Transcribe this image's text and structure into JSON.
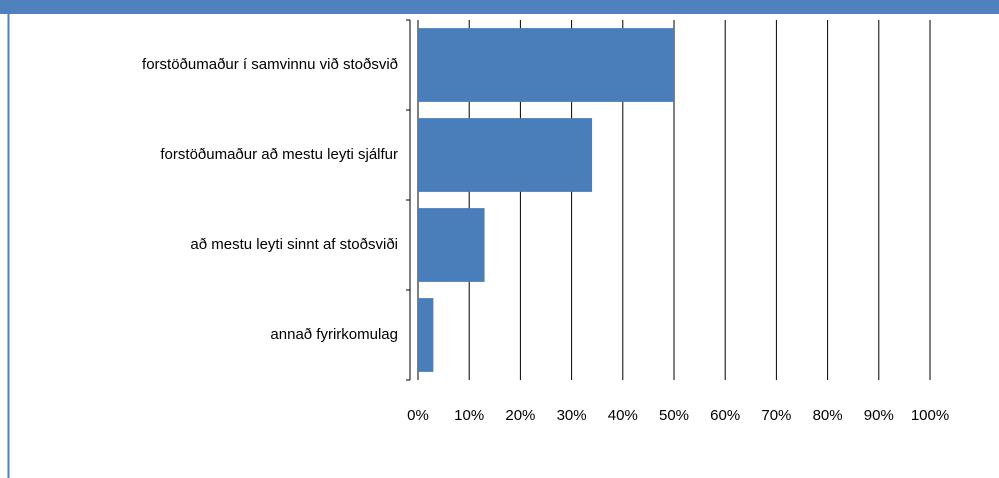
{
  "chart_data": {
    "type": "bar",
    "orientation": "horizontal",
    "categories": [
      "forstöðumaður í samvinnu við stoðsvið",
      "forstöðumaður að mestu leyti sjálfur",
      "að mestu leyti sinnt af stoðsviði",
      "annað fyrirkomulag"
    ],
    "values": [
      50,
      34,
      13,
      3
    ],
    "color": "#4a7ebb",
    "xlim": [
      0,
      100
    ],
    "xticks": [
      {
        "value": 0,
        "label": "0%"
      },
      {
        "value": 10,
        "label": "10%"
      },
      {
        "value": 20,
        "label": "20%"
      },
      {
        "value": 30,
        "label": "30%"
      },
      {
        "value": 40,
        "label": "40%"
      },
      {
        "value": 50,
        "label": "50%"
      },
      {
        "value": 60,
        "label": "60%"
      },
      {
        "value": 70,
        "label": "70%"
      },
      {
        "value": 80,
        "label": "80%"
      },
      {
        "value": 90,
        "label": "90%"
      },
      {
        "value": 100,
        "label": "100%"
      }
    ],
    "grid": true
  }
}
